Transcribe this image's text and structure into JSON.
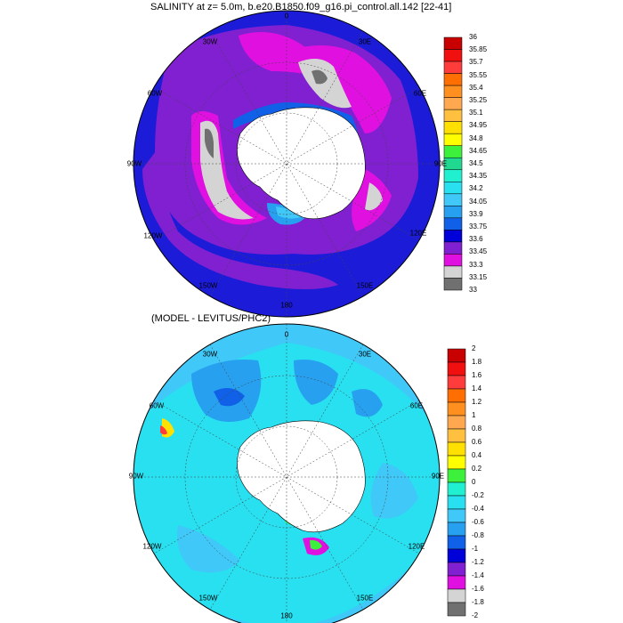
{
  "top_panel": {
    "title": "SALINITY at z=   5.0m, b.e20.B1850.f09_g16.pi_control.all.142 [22-41]",
    "colorbar": {
      "labels": [
        "36",
        "35.85",
        "35.7",
        "35.55",
        "35.4",
        "35.25",
        "35.1",
        "34.95",
        "34.8",
        "34.65",
        "34.5",
        "34.35",
        "34.2",
        "34.05",
        "33.9",
        "33.75",
        "33.6",
        "33.45",
        "33.3",
        "33.15",
        "33"
      ],
      "colors": [
        "#c80000",
        "#f01010",
        "#ff3c3c",
        "#ff6e00",
        "#ff9020",
        "#ffa850",
        "#ffc040",
        "#ffe000",
        "#ffff00",
        "#3cf03c",
        "#20d890",
        "#20f0d0",
        "#28e0f0",
        "#40c8f8",
        "#28a0f0",
        "#1060e8",
        "#0000d8",
        "#8020d0",
        "#e010e0",
        "#d4d4d4",
        "#707070"
      ]
    }
  },
  "bottom_panel": {
    "title": "(MODEL - LEVITUS/PHC2)",
    "colorbar": {
      "labels": [
        "2",
        "1.8",
        "1.6",
        "1.4",
        "1.2",
        "1",
        "0.8",
        "0.6",
        "0.4",
        "0.2",
        "0",
        "-0.2",
        "-0.4",
        "-0.6",
        "-0.8",
        "-1",
        "-1.2",
        "-1.4",
        "-1.6",
        "-1.8",
        "-2"
      ],
      "colors": [
        "#c80000",
        "#f01010",
        "#ff3c3c",
        "#ff6e00",
        "#ff9020",
        "#ffa850",
        "#ffc040",
        "#ffe000",
        "#ffff00",
        "#3cf03c",
        "#20f0d0",
        "#28e0f0",
        "#40c8f8",
        "#28a0f0",
        "#1060e8",
        "#0000d8",
        "#8020d0",
        "#e010e0",
        "#d4d4d4",
        "#707070"
      ]
    }
  },
  "longitude_labels": [
    "0",
    "30E",
    "60E",
    "90E",
    "120E",
    "150E",
    "180",
    "150W",
    "120W",
    "90W",
    "60W",
    "30W"
  ]
}
